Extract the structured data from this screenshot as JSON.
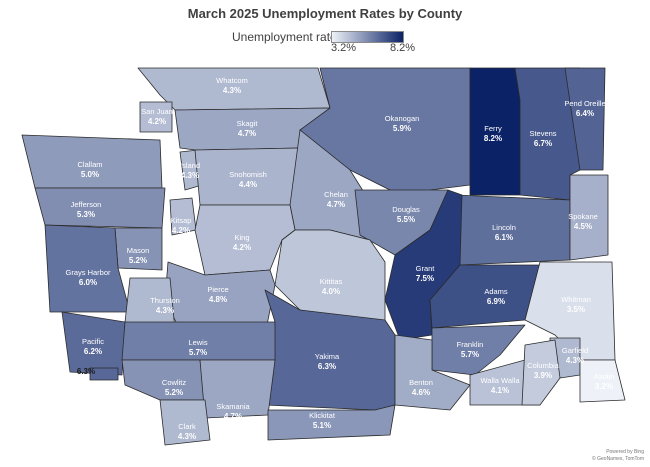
{
  "title": "March 2025 Unemployment Rates by County",
  "legend": {
    "label": "Unemployment rate",
    "min_label": "3.2%",
    "max_label": "8.2%",
    "min": 3.2,
    "max": 8.2,
    "color_low": "#eef2f8",
    "color_high": "#0b2266"
  },
  "attribution": {
    "line1": "Powered by Bing",
    "line2": "© GeoNames, TomTom"
  },
  "counties": [
    {
      "name": "Whatcom",
      "rate": 4.3,
      "label": "4.3%"
    },
    {
      "name": "San Juan",
      "rate": 4.2,
      "label": "4.2%"
    },
    {
      "name": "Skagit",
      "rate": 4.7,
      "label": "4.7%"
    },
    {
      "name": "Okanogan",
      "rate": 5.9,
      "label": "5.9%"
    },
    {
      "name": "Ferry",
      "rate": 8.2,
      "label": "8.2%"
    },
    {
      "name": "Stevens",
      "rate": 6.7,
      "label": "6.7%"
    },
    {
      "name": "Pend Oreille",
      "rate": 6.4,
      "label": "6.4%"
    },
    {
      "name": "Clallam",
      "rate": 5.0,
      "label": "5.0%"
    },
    {
      "name": "Island",
      "rate": 4.3,
      "label": "4.3%"
    },
    {
      "name": "Snohomish",
      "rate": 4.4,
      "label": "4.4%"
    },
    {
      "name": "Jefferson",
      "rate": 5.3,
      "label": "5.3%"
    },
    {
      "name": "Kitsap",
      "rate": 4.2,
      "label": "4.2%"
    },
    {
      "name": "Chelan",
      "rate": 4.7,
      "label": "4.7%"
    },
    {
      "name": "Douglas",
      "rate": 5.5,
      "label": "5.5%"
    },
    {
      "name": "Lincoln",
      "rate": 6.1,
      "label": "6.1%"
    },
    {
      "name": "Spokane",
      "rate": 4.5,
      "label": "4.5%"
    },
    {
      "name": "Mason",
      "rate": 5.2,
      "label": "5.2%"
    },
    {
      "name": "King",
      "rate": 4.2,
      "label": "4.2%"
    },
    {
      "name": "Grays Harbor",
      "rate": 6.0,
      "label": "6.0%"
    },
    {
      "name": "Kittitas",
      "rate": 4.0,
      "label": "4.0%"
    },
    {
      "name": "Grant",
      "rate": 7.5,
      "label": "7.5%"
    },
    {
      "name": "Adams",
      "rate": 6.9,
      "label": "6.9%"
    },
    {
      "name": "Whitman",
      "rate": 3.5,
      "label": "3.5%"
    },
    {
      "name": "Pierce",
      "rate": 4.8,
      "label": "4.8%"
    },
    {
      "name": "Thurston",
      "rate": 4.3,
      "label": "4.3%"
    },
    {
      "name": "Pacific",
      "rate": 6.2,
      "label": "6.2%"
    },
    {
      "name": "Lewis",
      "rate": 5.7,
      "label": "5.7%"
    },
    {
      "name": "Yakima",
      "rate": 6.3,
      "label": "6.3%"
    },
    {
      "name": "Franklin",
      "rate": 5.7,
      "label": "5.7%"
    },
    {
      "name": "Garfield",
      "rate": 4.3,
      "label": "4.3%"
    },
    {
      "name": "Wahkiakum",
      "rate": 6.3,
      "label": "6.3%"
    },
    {
      "name": "Cowlitz",
      "rate": 5.2,
      "label": "5.2%"
    },
    {
      "name": "Benton",
      "rate": 4.6,
      "label": "4.6%"
    },
    {
      "name": "Walla Walla",
      "rate": 4.1,
      "label": "4.1%"
    },
    {
      "name": "Columbia",
      "rate": 3.9,
      "label": "3.9%"
    },
    {
      "name": "Asotin",
      "rate": 3.2,
      "label": "3.2%"
    },
    {
      "name": "Skamania",
      "rate": 4.7,
      "label": "4.7%"
    },
    {
      "name": "Klickitat",
      "rate": 5.1,
      "label": "5.1%"
    },
    {
      "name": "Clark",
      "rate": 4.3,
      "label": "4.3%"
    }
  ]
}
